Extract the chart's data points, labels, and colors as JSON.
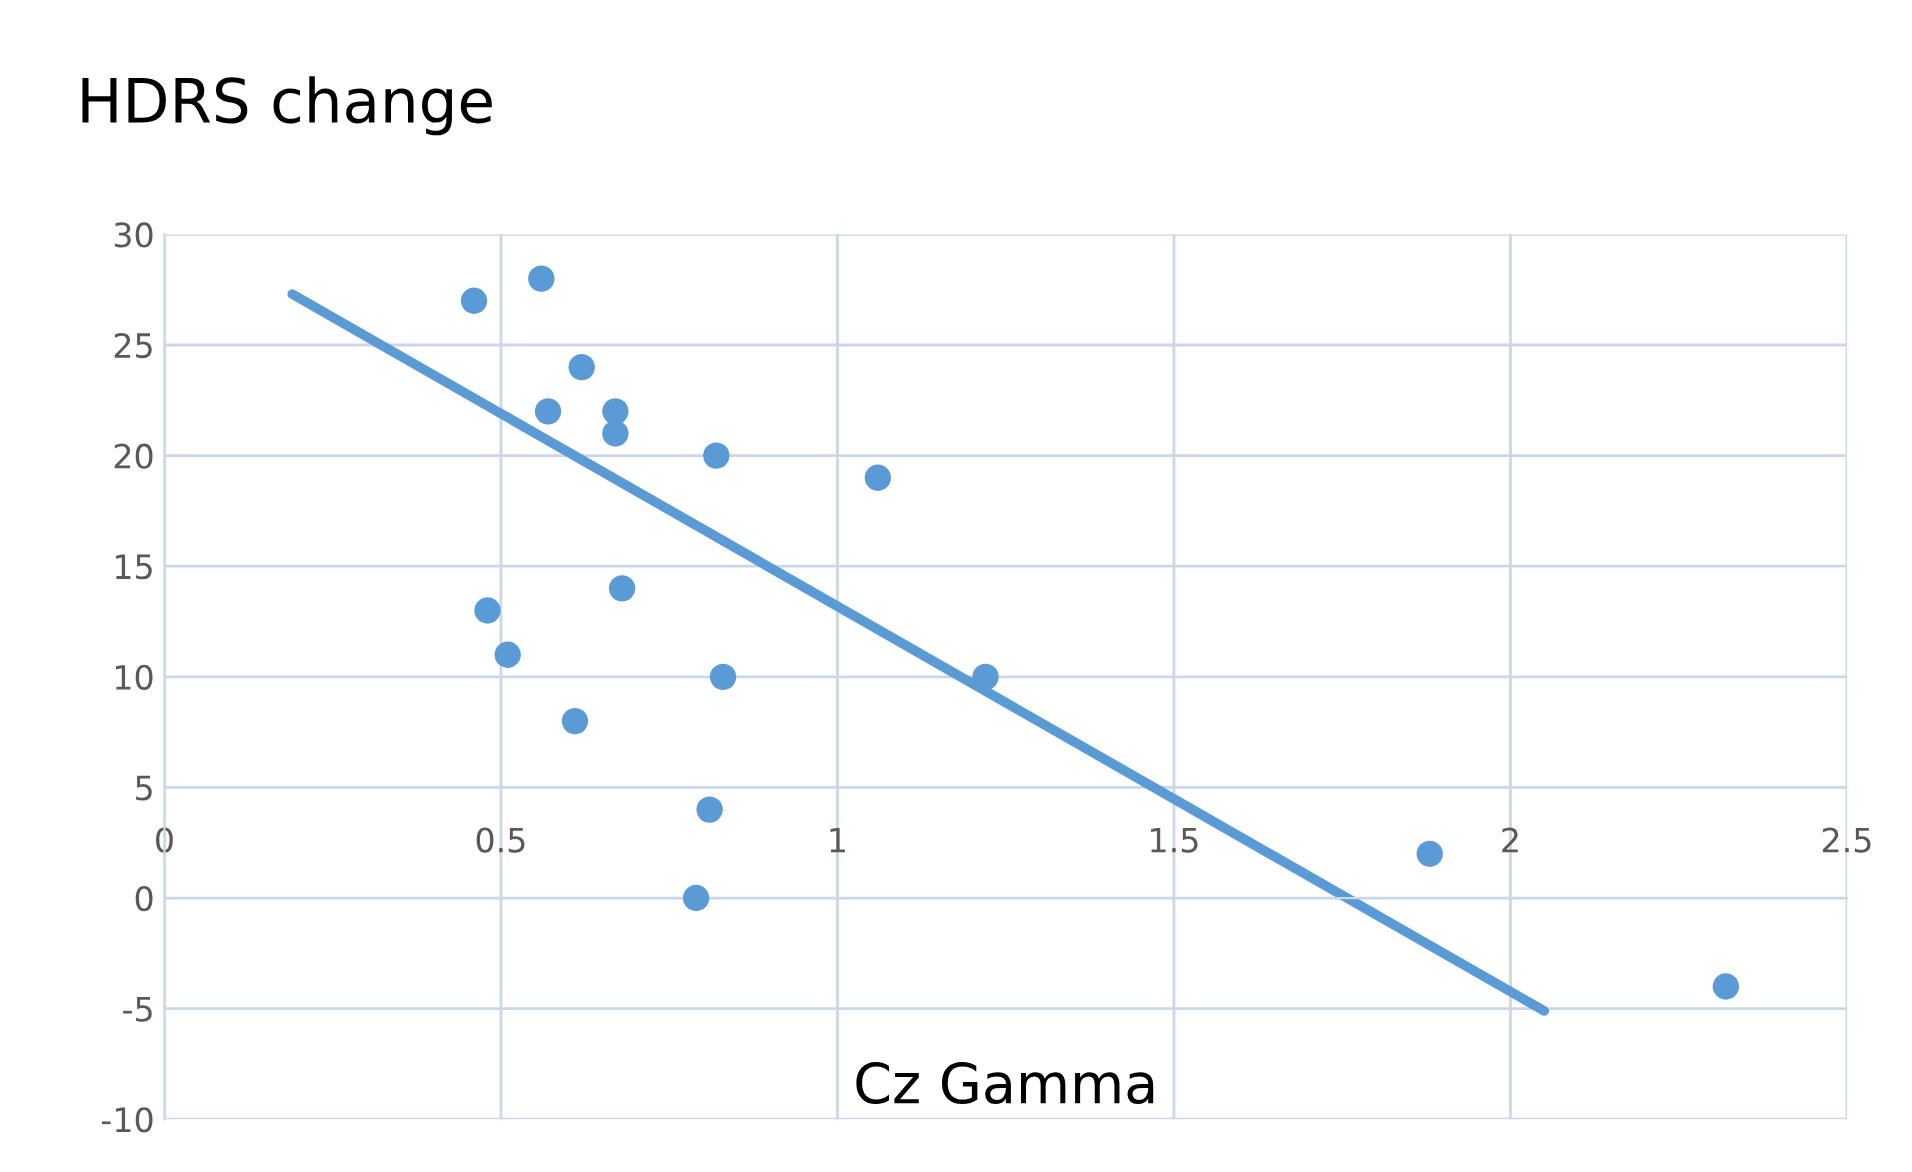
{
  "chart_data": {
    "type": "scatter",
    "title": "HDRS change",
    "xlabel": "Cz Gamma",
    "xlim": [
      0,
      2.5
    ],
    "xticks": [
      0,
      0.5,
      1,
      1.5,
      2,
      2.5
    ],
    "ylim": [
      -10,
      30
    ],
    "yticks": [
      -10,
      -5,
      0,
      5,
      10,
      15,
      20,
      25,
      30
    ],
    "grid": true,
    "marker": "circle",
    "series": [
      {
        "color": "#5b9bd5",
        "x": [
          0.46,
          0.56,
          0.62,
          0.57,
          0.67,
          0.67,
          0.82,
          1.06,
          0.48,
          0.68,
          0.51,
          0.83,
          1.22,
          0.61,
          0.81,
          0.79,
          1.88,
          2.32
        ],
        "values": [
          27,
          28,
          24,
          22,
          22,
          21,
          20,
          19,
          13,
          14,
          11,
          10,
          10,
          8,
          4,
          0,
          2,
          -4
        ]
      },
      {
        "type": "line",
        "marker": "none",
        "color": "#5b9bd5",
        "x": [
          0.19,
          2.05
        ],
        "values": [
          27.3,
          -5.1
        ]
      }
    ]
  }
}
